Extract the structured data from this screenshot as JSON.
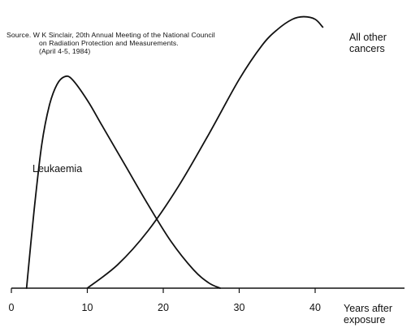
{
  "source": {
    "line1": "Source. W K Sinclair, 20th Annual Meeting of the National Council",
    "line2": "on Radiation Protection and Measurements.",
    "line3": "(April 4-5, 1984)"
  },
  "chart_data": {
    "type": "line",
    "title": "",
    "xlabel": "Years after exposure",
    "xlabel_lines": [
      "Years after",
      "exposure"
    ],
    "ylabel": "",
    "xlim": [
      0,
      52
    ],
    "ylim": [
      0,
      1
    ],
    "xticks": [
      0,
      10,
      20,
      30,
      40
    ],
    "grid": false,
    "legend": "none",
    "series": [
      {
        "name": "Leukaemia",
        "color": "#111111",
        "x": [
          2,
          3,
          4,
          5,
          6,
          7,
          8,
          10,
          12,
          15,
          18,
          21,
          24,
          26,
          27.5
        ],
        "y": [
          0,
          0.3,
          0.55,
          0.7,
          0.78,
          0.81,
          0.8,
          0.72,
          0.62,
          0.47,
          0.32,
          0.18,
          0.07,
          0.02,
          0
        ]
      },
      {
        "name": "All other cancers",
        "color": "#111111",
        "x": [
          10,
          14,
          18,
          22,
          26,
          30,
          33,
          35,
          37,
          38.5,
          40,
          41
        ],
        "y": [
          0,
          0.09,
          0.22,
          0.39,
          0.59,
          0.8,
          0.93,
          0.99,
          1.03,
          1.04,
          1.03,
          1.0
        ]
      }
    ]
  }
}
